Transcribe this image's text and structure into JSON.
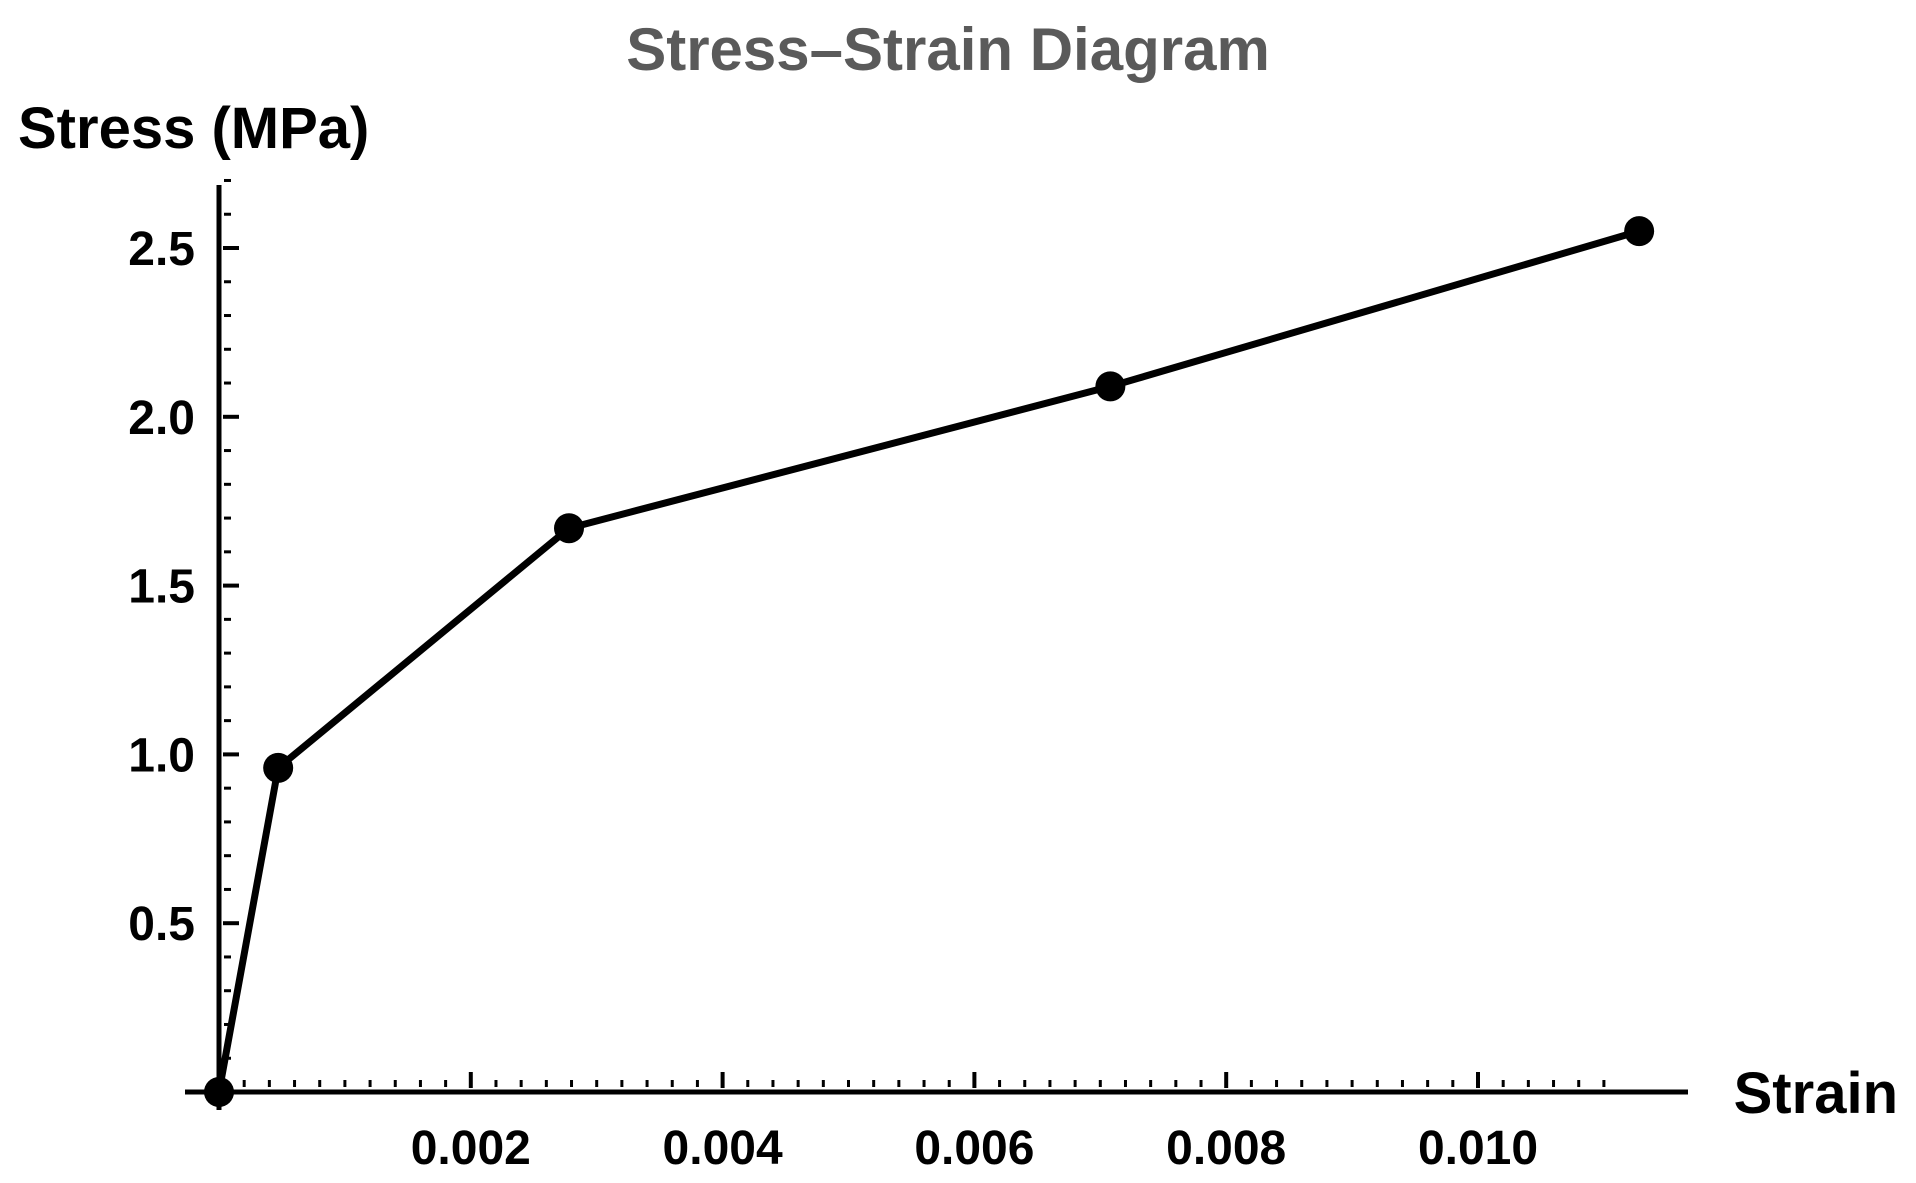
{
  "chart_data": {
    "type": "line",
    "title": "Stress–Strain Diagram",
    "xlabel": "Strain",
    "ylabel": "Stress (MPa)",
    "xlim": [
      0,
      0.0113
    ],
    "ylim": [
      0,
      2.7
    ],
    "x_ticks": [
      0.002,
      0.004,
      0.006,
      0.008,
      0.01
    ],
    "x_tick_labels": [
      "0.002",
      "0.004",
      "0.006",
      "0.008",
      "0.010"
    ],
    "y_ticks": [
      0.5,
      1.0,
      1.5,
      2.0,
      2.5
    ],
    "y_tick_labels": [
      "0.5",
      "1.0",
      "1.5",
      "2.0",
      "2.5"
    ],
    "grid": false,
    "line_color": "#000000",
    "marker_color": "#000000",
    "title_color": "#5a5a5a",
    "series": [
      {
        "x": [
          0,
          0.00047,
          0.00278,
          0.00708,
          0.01128
        ],
        "y": [
          0,
          0.96,
          1.67,
          2.09,
          2.55
        ]
      }
    ]
  }
}
